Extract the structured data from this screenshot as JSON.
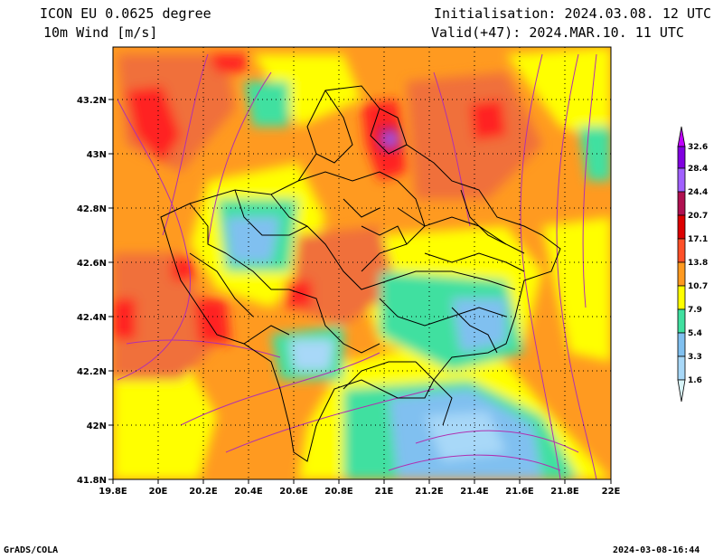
{
  "header": {
    "model": "ICON EU 0.0625 degree",
    "variable": "10m Wind [m/s]",
    "init": "Initialisation: 2024.03.08. 12 UTC",
    "valid": "Valid(+47): 2024.MAR.10. 11 UTC"
  },
  "footer": {
    "left": "GrADS/COLA",
    "right": "2024-03-08-16:44"
  },
  "map": {
    "lon_range": [
      19.8,
      22.0
    ],
    "lat_range": [
      41.8,
      43.4
    ],
    "lon_ticks": [
      "19.8E",
      "20E",
      "20.2E",
      "20.4E",
      "20.6E",
      "20.8E",
      "21E",
      "21.2E",
      "21.4E",
      "21.6E",
      "21.8E",
      "22E"
    ],
    "lat_ticks": [
      "41.8N",
      "42N",
      "42.2N",
      "42.4N",
      "42.6N",
      "42.8N",
      "43N",
      "43.2N"
    ],
    "gridlines": "dotted"
  },
  "colorbar": {
    "labels": [
      "1.6",
      "3.3",
      "5.4",
      "7.9",
      "10.7",
      "13.8",
      "17.1",
      "20.7",
      "24.4",
      "28.4",
      "32.6"
    ],
    "colors": [
      "#d8f4f8",
      "#a8d8f8",
      "#80c0f0",
      "#40e0a0",
      "#ffff00",
      "#ff9a20",
      "#ff5028",
      "#dc0000",
      "#b01050",
      "#a060ff",
      "#8000e0",
      "#c000ff"
    ]
  }
}
